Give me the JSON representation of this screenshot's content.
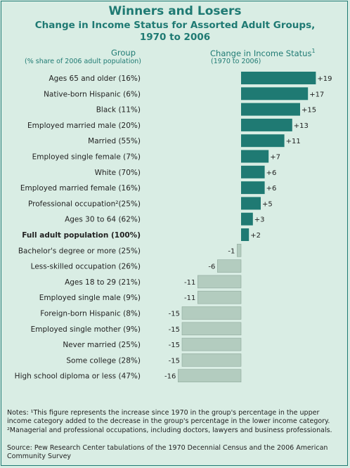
{
  "title": "Winners and Losers",
  "subtitle_line1": "Change in Income Status for Assorted Adult Groups,",
  "subtitle_line2": "1970 to 2006",
  "group_header": "Group",
  "group_subheader": "(% share of 2006 adult population)",
  "change_header": "Change in Income Status",
  "change_header_sup": "1",
  "change_subheader": "(1970 to 2006)",
  "notes_line1": "Notes: ¹This figure represents the increase since 1970 in the group's percentage in the upper",
  "notes_line2": "income category added to the decrease in the group's percentage in the lower income category.",
  "notes_line3": "²Managerial and professional occupations, including doctors, lawyers and business professionals.",
  "source_line1": "Source: Pew Research Center tabulations of the 1970 Decennial Census and the 2006 American",
  "source_line2": "Community Survey",
  "colors": {
    "positive": "#1f7a73",
    "negative": "#b3ccbf",
    "title": "#1f7a73",
    "background": "#d9ede4"
  },
  "chart_data": {
    "type": "bar",
    "orientation": "horizontal",
    "categories": [
      "Ages 65 and older (16%)",
      "Native-born Hispanic (6%)",
      "Black (11%)",
      "Employed married male (20%)",
      "Married (55%)",
      "Employed single female (7%)",
      "White (70%)",
      "Employed married female (16%)",
      "Professional occupation²(25%)",
      "Ages 30 to 64 (62%)",
      "Full adult population (100%)",
      "Bachelor's degree or more (25%)",
      "Less-skilled occupation (26%)",
      "Ages 18 to 29 (21%)",
      "Employed single male (9%)",
      "Foreign-born Hispanic (8%)",
      "Employed single mother (9%)",
      "Never married (25%)",
      "Some college (28%)",
      "High school diploma or less (47%)"
    ],
    "values": [
      19,
      17,
      15,
      13,
      11,
      7,
      6,
      6,
      5,
      3,
      2,
      -1,
      -6,
      -11,
      -11,
      -15,
      -15,
      -15,
      -15,
      -16
    ],
    "value_labels": [
      "+19",
      "+17",
      "+15",
      "+13",
      "+11",
      "+7",
      "+6",
      "+6",
      "+5",
      "+3",
      "+2",
      "-1",
      "-6",
      "-11",
      "-11",
      "-15",
      "-15",
      "-15",
      "-15",
      "-16"
    ],
    "bold_category": "Full adult population (100%)"
  }
}
